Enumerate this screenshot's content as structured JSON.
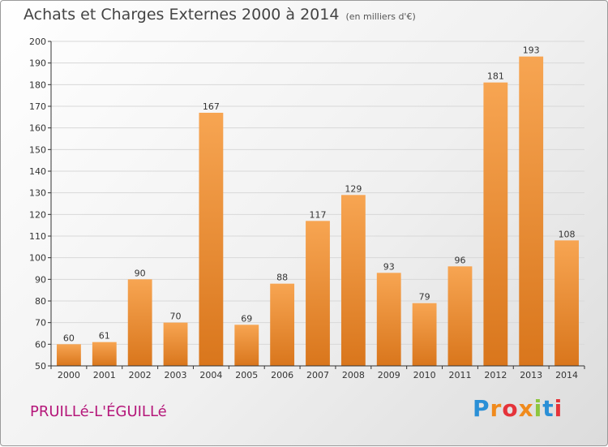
{
  "page": {
    "title": "Achats et Charges Externes 2000 à 2014",
    "unit": "(en milliers d'€)",
    "commune": "PRUILLé-L'ÉGUILLé",
    "logo_text": "Proxiti"
  },
  "colors": {
    "bar_light": "#f7a552",
    "bar_dark": "#d9761c",
    "commune_text": "#b5177a",
    "grid": "#d8d8d8",
    "axis": "#333333"
  },
  "chart_data": {
    "type": "bar",
    "title": "Achats et Charges Externes 2000 à 2014",
    "subtitle": "(en milliers d'€)",
    "categories": [
      "2000",
      "2001",
      "2002",
      "2003",
      "2004",
      "2005",
      "2006",
      "2007",
      "2008",
      "2009",
      "2010",
      "2011",
      "2012",
      "2013",
      "2014"
    ],
    "values": [
      60,
      61,
      90,
      70,
      167,
      69,
      88,
      117,
      129,
      93,
      79,
      96,
      181,
      193,
      108
    ],
    "ylim": [
      50,
      200
    ],
    "yticks": [
      50,
      60,
      70,
      80,
      90,
      100,
      110,
      120,
      130,
      140,
      150,
      160,
      170,
      180,
      190,
      200
    ],
    "grid": true,
    "data_labels": true
  }
}
